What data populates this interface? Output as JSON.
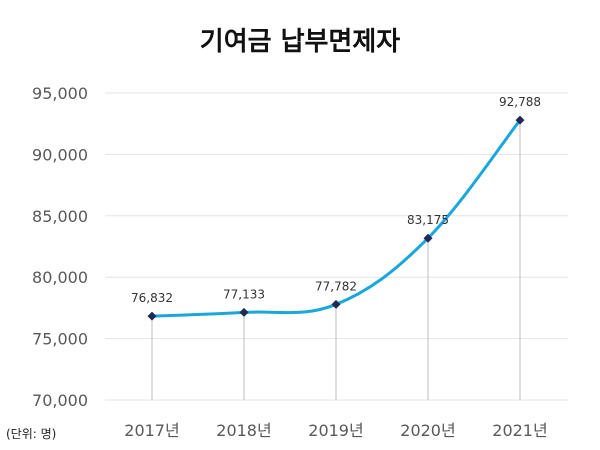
{
  "chart_data": {
    "type": "line",
    "title": "기여금 납부면제자",
    "unit_note": "(단위: 명)",
    "categories": [
      "2017년",
      "2018년",
      "2019년",
      "2020년",
      "2021년"
    ],
    "values": [
      76832,
      77133,
      77782,
      83175,
      92788
    ],
    "data_labels": [
      "76,832",
      "77,133",
      "77,782",
      "83,175",
      "92,788"
    ],
    "ylim": [
      70000,
      95000
    ],
    "yticks": [
      70000,
      75000,
      80000,
      85000,
      90000,
      95000
    ],
    "ytick_labels": [
      "70,000",
      "75,000",
      "80,000",
      "85,000",
      "90,000",
      "95,000"
    ],
    "grid": true,
    "legend": "none",
    "colors": {
      "line": "#1aa7dc",
      "marker": "#1f2a5a",
      "grid": "#e3e3e3",
      "drop": "#bdbdbd"
    }
  }
}
